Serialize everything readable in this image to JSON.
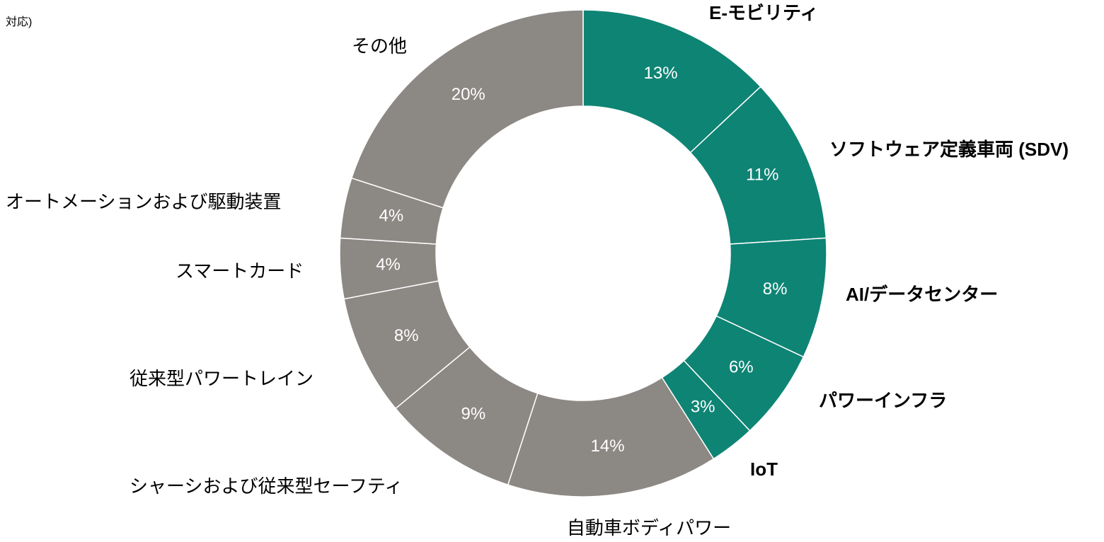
{
  "note": "対応)",
  "chart_data": {
    "type": "donut",
    "categories": [
      "E-モビリティ",
      "ソフトウェア定義車両 (SDV)",
      "AI/データセンター",
      "パワーインフラ",
      "IoT",
      "自動車ボディパワー",
      "シャーシおよび従来型セーフティ",
      "従来型パワートレイン",
      "スマートカード",
      "オートメーションおよび駆動装置",
      "その他"
    ],
    "values": [
      13,
      11,
      8,
      6,
      3,
      14,
      9,
      8,
      4,
      4,
      20
    ],
    "value_labels": [
      "13%",
      "11%",
      "8%",
      "6%",
      "3%",
      "14%",
      "9%",
      "8%",
      "4%",
      "4%",
      "20%"
    ],
    "colors": [
      "#0e8474",
      "#0e8474",
      "#0e8474",
      "#0e8474",
      "#0e8474",
      "#8c8884",
      "#8c8884",
      "#8c8884",
      "#8c8884",
      "#8c8884",
      "#8c8884"
    ],
    "label_bold": [
      true,
      true,
      true,
      true,
      true,
      false,
      false,
      false,
      false,
      false,
      false
    ]
  }
}
